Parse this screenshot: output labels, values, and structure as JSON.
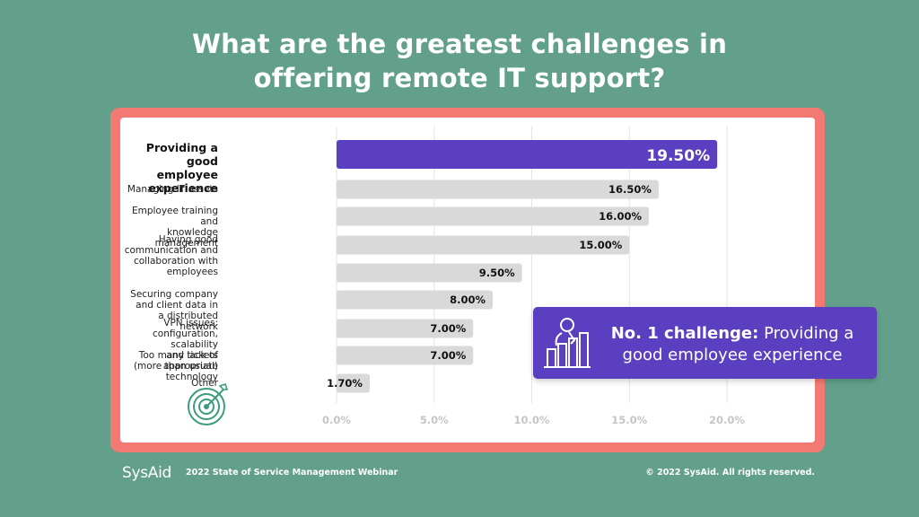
{
  "title_line1": "What are the greatest challenges in",
  "title_line2": "offering remote IT support?",
  "callout": {
    "bold": "No. 1 challenge:",
    "text_line1": "Providing a",
    "text_line2": "good employee experience"
  },
  "footer": {
    "logo": "SysAid",
    "webinar": "2022 State of Service Management Webinar",
    "copyright": "© 2022 SysAid. All rights reserved."
  },
  "colors": {
    "background": "#62a08b",
    "frame": "#f37a72",
    "highlight_bar": "#5a3fc0",
    "bar": "#d9d9d9",
    "tick_label": "#c5c5c5"
  },
  "chart_data": {
    "type": "bar",
    "orientation": "horizontal",
    "categories": [
      "Providing a good\nemployee experience",
      "Managing IT assets",
      "Employee training and\nknowledge management",
      "Having good communication and\ncollaboration with employees",
      "",
      "Securing company and client data in\na distributed network",
      "VPN issues: configuration, scalability\nand lack of appropriate technology",
      "Too many tickets (more than usual)",
      "Other"
    ],
    "values": [
      19.5,
      16.5,
      16.0,
      15.0,
      9.5,
      8.0,
      7.0,
      7.0,
      1.7
    ],
    "value_labels": [
      "19.50%",
      "16.50%",
      "16.00%",
      "15.00%",
      "9.50%",
      "8.00%",
      "7.00%",
      "7.00%",
      "1.70%"
    ],
    "xlim": [
      0,
      20
    ],
    "xticks": [
      "0.0%",
      "5.0%",
      "10.0%",
      "15.0%",
      "20.0%"
    ],
    "grid": true,
    "highlight_index": 0
  }
}
